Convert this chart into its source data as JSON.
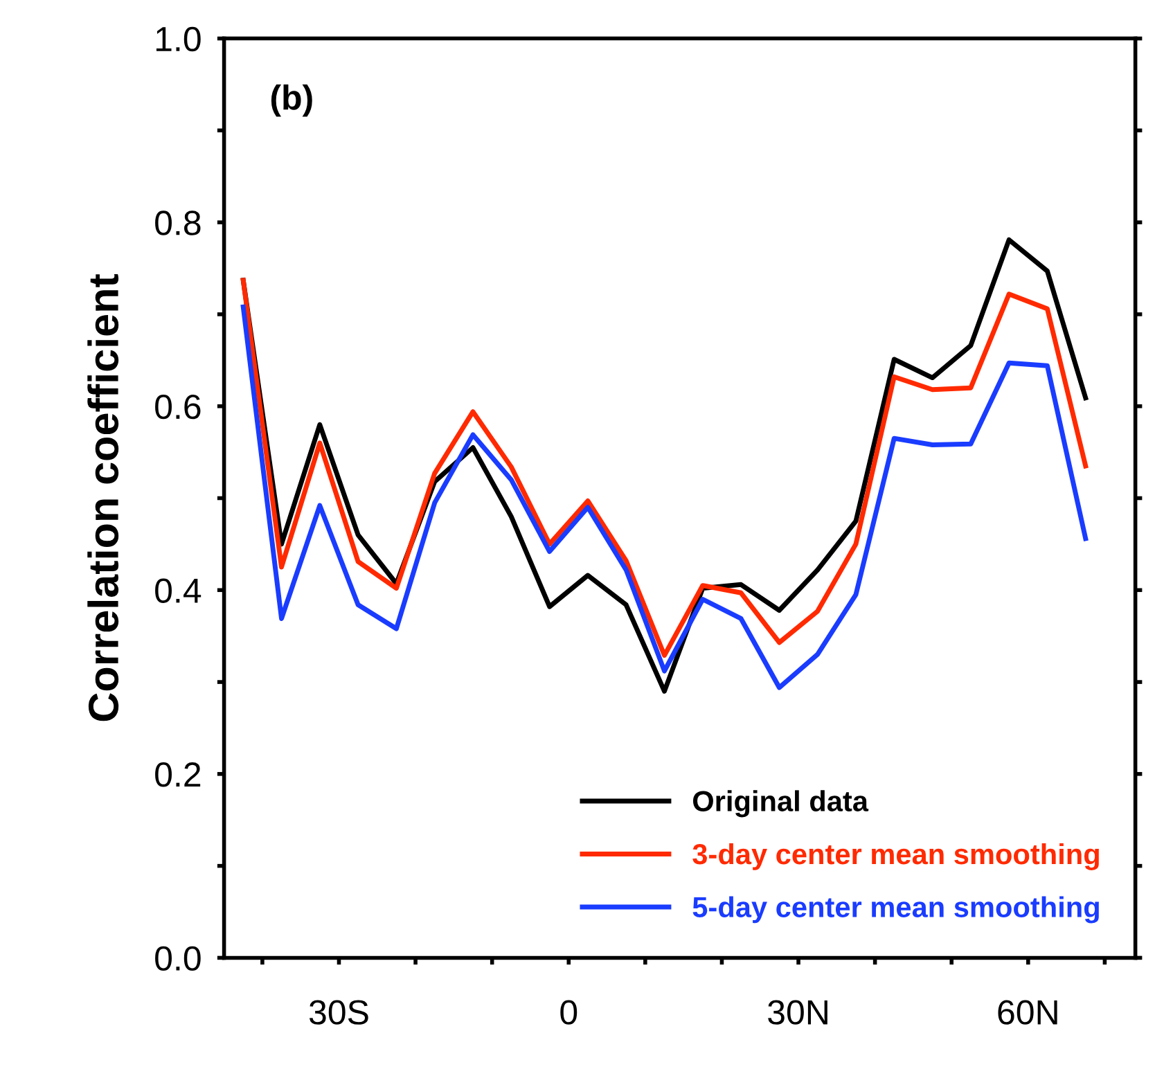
{
  "chart_data": {
    "type": "line",
    "ylabel": "Correlation coefficient",
    "annotations": [
      "(b)"
    ],
    "x": [
      -42.5,
      -37.5,
      -32.5,
      -27.5,
      -22.5,
      -17.5,
      -12.5,
      -7.5,
      -2.5,
      2.5,
      7.5,
      12.5,
      17.5,
      22.5,
      27.5,
      32.5,
      37.5,
      42.5,
      47.5,
      52.5,
      57.5,
      62.5,
      67.5
    ],
    "xlim": [
      -45,
      74
    ],
    "xticks": [
      {
        "value": -40,
        "label": null
      },
      {
        "value": -30,
        "label": "30S"
      },
      {
        "value": -20,
        "label": null
      },
      {
        "value": -10,
        "label": null
      },
      {
        "value": 0,
        "label": "0"
      },
      {
        "value": 10,
        "label": null
      },
      {
        "value": 20,
        "label": null
      },
      {
        "value": 30,
        "label": "30N"
      },
      {
        "value": 40,
        "label": null
      },
      {
        "value": 50,
        "label": null
      },
      {
        "value": 60,
        "label": "60N"
      },
      {
        "value": 70,
        "label": null
      }
    ],
    "ylim": [
      0,
      1
    ],
    "yticks": [
      {
        "value": 0,
        "label": "0.0"
      },
      {
        "value": 0.1,
        "label": null
      },
      {
        "value": 0.2,
        "label": "0.2"
      },
      {
        "value": 0.3,
        "label": null
      },
      {
        "value": 0.4,
        "label": "0.4"
      },
      {
        "value": 0.5,
        "label": null
      },
      {
        "value": 0.6,
        "label": "0.6"
      },
      {
        "value": 0.7,
        "label": null
      },
      {
        "value": 0.8,
        "label": "0.8"
      },
      {
        "value": 0.9,
        "label": null
      },
      {
        "value": 1,
        "label": "1.0"
      }
    ],
    "grid": false,
    "legend": "bottom right",
    "marker": "none",
    "line_style": "solid",
    "series": [
      {
        "name": "Original data",
        "color": "#000000",
        "values": [
          0.737,
          0.45,
          0.58,
          0.46,
          0.407,
          0.518,
          0.555,
          0.48,
          0.382,
          0.416,
          0.384,
          0.29,
          0.402,
          0.406,
          0.378,
          0.422,
          0.475,
          0.651,
          0.631,
          0.666,
          0.781,
          0.747,
          0.609
        ]
      },
      {
        "name": "3-day center mean smoothing",
        "color": "#ff2a00",
        "values": [
          0.737,
          0.425,
          0.56,
          0.431,
          0.402,
          0.527,
          0.594,
          0.534,
          0.45,
          0.497,
          0.432,
          0.329,
          0.405,
          0.397,
          0.343,
          0.377,
          0.45,
          0.632,
          0.618,
          0.62,
          0.722,
          0.706,
          0.535
        ]
      },
      {
        "name": "5-day center mean smoothing",
        "color": "#1a3cff",
        "values": [
          0.708,
          0.369,
          0.492,
          0.384,
          0.358,
          0.495,
          0.569,
          0.52,
          0.442,
          0.49,
          0.422,
          0.312,
          0.39,
          0.369,
          0.294,
          0.33,
          0.395,
          0.565,
          0.558,
          0.559,
          0.647,
          0.644,
          0.456
        ]
      }
    ]
  }
}
